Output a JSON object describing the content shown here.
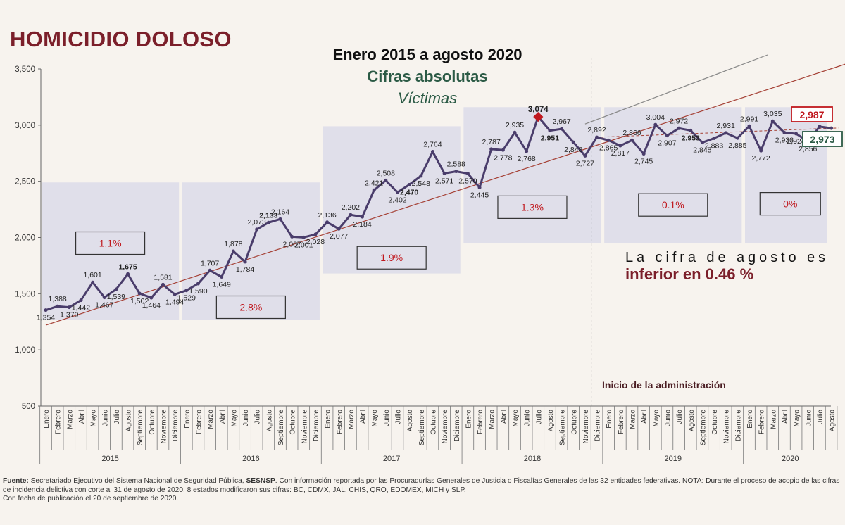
{
  "page_title": "HOMICIDIO DOLOSO",
  "footer": {
    "source_label": "Fuente:",
    "text_part1": "Secretariado Ejecutivo del Sistema Nacional de Seguridad Pública,",
    "sesnsp": "SESNSP",
    "text_part2": ". Con información reportada por las Procuradurías Generales de Justicia o Fiscalías Generales de las 32 entidades federativas. NOTA: Durante el proceso de acopio de las cifras de incidencia delictiva con corte al 31 de agosto de 2020, 8 estados modificaron sus cifras: BC, CDMX, JAL, CHIS, QRO, EDOMEX, MICH y SLP.",
    "publication": "Con fecha de publicación el 20 de septiembre de 2020."
  },
  "chart_data": {
    "type": "line",
    "title": "Enero 2015 a agosto 2020",
    "subtitle": "Cifras absolutas",
    "subtitle2": "Víctimas",
    "ylim": [
      500,
      3500
    ],
    "yticks": [
      "500",
      "1,000",
      "1,500",
      "2,000",
      "2,500",
      "3,000",
      "3,500"
    ],
    "ytick_values": [
      500,
      1000,
      1500,
      2000,
      2500,
      3000,
      3500
    ],
    "months": [
      "Enero",
      "Febrero",
      "Marzo",
      "Abril",
      "Mayo",
      "Junio",
      "Julio",
      "Agosto",
      "Septiembre",
      "Octubre",
      "Noviembre",
      "Diciembre"
    ],
    "years": [
      "2015",
      "2016",
      "2017",
      "2018",
      "2019",
      "2020"
    ],
    "value_labels": [
      "1,354",
      "1,388",
      "1,379",
      "1,442",
      "1,601",
      "1,467",
      "1,539",
      "1,675",
      "1,502",
      "1,464",
      "1,581",
      "1,494",
      "1,529",
      "1,590",
      "1,707",
      "1,649",
      "1,878",
      "1,784",
      "2,073",
      "2,133",
      "2,164",
      "2,007",
      "2,001",
      "2,028",
      "2,136",
      "2,077",
      "2,202",
      "2,184",
      "2,421",
      "2,508",
      "2,402",
      "2,470",
      "2,548",
      "2,764",
      "2,571",
      "2,588",
      "2,570",
      "2,445",
      "2,787",
      "2,778",
      "2,935",
      "2,768",
      "3,074",
      "2,951",
      "2,967",
      "2,848",
      "2,727",
      "2,892",
      "2,865",
      "2,817",
      "2,866",
      "2,745",
      "3,004",
      "2,907",
      "2,972",
      "2,953",
      "2,845",
      "2,883",
      "2,931",
      "2,885",
      "2,991",
      "2,772",
      "3,035",
      "2,933",
      "2,924",
      "2,856",
      "2,987",
      "2,973"
    ],
    "values": [
      1354,
      1388,
      1379,
      1442,
      1601,
      1467,
      1539,
      1675,
      1502,
      1464,
      1581,
      1494,
      1529,
      1590,
      1707,
      1649,
      1878,
      1784,
      2073,
      2133,
      2164,
      2007,
      2001,
      2028,
      2136,
      2077,
      2202,
      2184,
      2421,
      2508,
      2402,
      2470,
      2548,
      2764,
      2571,
      2588,
      2570,
      2445,
      2787,
      2778,
      2935,
      2768,
      3074,
      2951,
      2967,
      2848,
      2727,
      2892,
      2865,
      2817,
      2866,
      2745,
      3004,
      2907,
      2972,
      2953,
      2845,
      2883,
      2931,
      2885,
      2991,
      2772,
      3035,
      2933,
      2924,
      2856,
      2987,
      2973
    ],
    "bold_indices": [
      7,
      19,
      31,
      43,
      55
    ],
    "year_boxes": [
      {
        "year": "2015",
        "ymin": 1270,
        "ymax": 2490,
        "growth": "1.1%",
        "label_y": 1950
      },
      {
        "year": "2016",
        "ymin": 1270,
        "ymax": 2490,
        "growth": "2.8%",
        "label_y": 1380
      },
      {
        "year": "2017",
        "ymin": 1680,
        "ymax": 2990,
        "growth": "1.9%",
        "label_y": 1820
      },
      {
        "year": "2018",
        "ymin": 1950,
        "ymax": 3160,
        "growth": "1.3%",
        "label_y": 2270
      },
      {
        "year": "2019",
        "ymin": 1950,
        "ymax": 3160,
        "growth": "0.1%",
        "label_y": 2290
      },
      {
        "year": "2020",
        "ymin": 1950,
        "ymax": 3160,
        "growth": "0%",
        "label_y": 2300
      }
    ],
    "trend_line": {
      "from": [
        0,
        1220
      ],
      "to": [
        68,
        3765
      ]
    },
    "administration_start_index": 47,
    "administration_label": "Inicio de la administración",
    "callouts": {
      "highlight_1": "2,987",
      "highlight_2": "2,973",
      "peak_label": "3,074"
    },
    "note_line1": "La cifra de agosto es",
    "note_line2": "inferior en 0.46 %",
    "colors": {
      "line": "#4a3d6b",
      "box": "#dcdae9",
      "trend": "#a54035",
      "accent": "#c0181e",
      "green": "#2b5a45",
      "dark_red": "#7b1f2a"
    }
  }
}
